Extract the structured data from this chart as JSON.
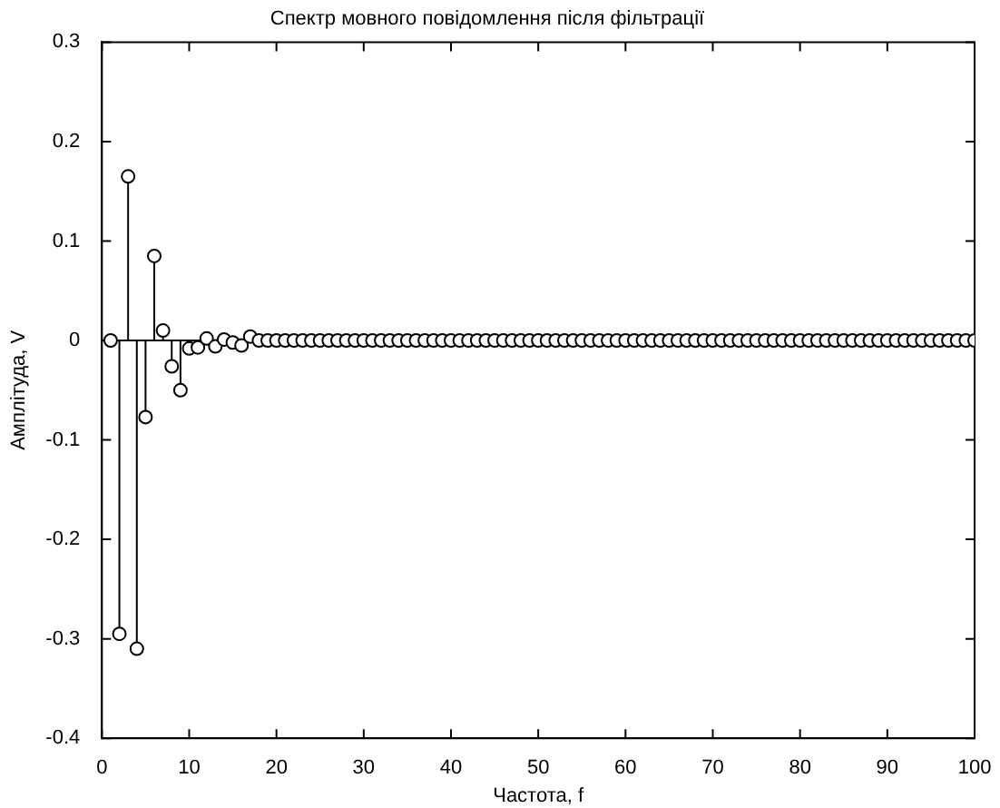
{
  "chart_data": {
    "type": "lollipop",
    "title": "Спектр мовного повідомлення після фільтрації",
    "xlabel": "Частота, f",
    "ylabel": "Амплітуда, V",
    "x": [
      1,
      2,
      3,
      4,
      5,
      6,
      7,
      8,
      9,
      10,
      11,
      12,
      13,
      14,
      15,
      16,
      17,
      18,
      19,
      20,
      21,
      22,
      23,
      24,
      25,
      26,
      27,
      28,
      29,
      30,
      31,
      32,
      33,
      34,
      35,
      36,
      37,
      38,
      39,
      40,
      41,
      42,
      43,
      44,
      45,
      46,
      47,
      48,
      49,
      50,
      51,
      52,
      53,
      54,
      55,
      56,
      57,
      58,
      59,
      60,
      61,
      62,
      63,
      64,
      65,
      66,
      67,
      68,
      69,
      70,
      71,
      72,
      73,
      74,
      75,
      76,
      77,
      78,
      79,
      80,
      81,
      82,
      83,
      84,
      85,
      86,
      87,
      88,
      89,
      90,
      91,
      92,
      93,
      94,
      95,
      96,
      97,
      98,
      99,
      100
    ],
    "values": [
      0,
      -0.295,
      0.165,
      -0.31,
      -0.077,
      0.085,
      0.01,
      -0.026,
      -0.05,
      -0.008,
      -0.007,
      0.002,
      -0.006,
      0.001,
      -0.002,
      -0.005,
      0.004,
      0,
      0,
      0,
      0,
      0,
      0,
      0,
      0,
      0,
      0,
      0,
      0,
      0,
      0,
      0,
      0,
      0,
      0,
      0,
      0,
      0,
      0,
      0,
      0,
      0,
      0,
      0,
      0,
      0,
      0,
      0,
      0,
      0,
      0,
      0,
      0,
      0,
      0,
      0,
      0,
      0,
      0,
      0,
      0,
      0,
      0,
      0,
      0,
      0,
      0,
      0,
      0,
      0,
      0,
      0,
      0,
      0,
      0,
      0,
      0,
      0,
      0,
      0,
      0,
      0,
      0,
      0,
      0,
      0,
      0,
      0,
      0,
      0,
      0,
      0,
      0,
      0,
      0,
      0,
      0,
      0,
      0,
      0
    ],
    "color": "#000000",
    "marker": "circle",
    "xlim": [
      0,
      100
    ],
    "xticks": [
      0,
      10,
      20,
      30,
      40,
      50,
      60,
      70,
      80,
      90,
      100
    ],
    "ylim": [
      -0.4,
      0.3
    ],
    "yticks": [
      -0.4,
      -0.3,
      -0.2,
      -0.1,
      0,
      0.1,
      0.2,
      0.3
    ]
  }
}
